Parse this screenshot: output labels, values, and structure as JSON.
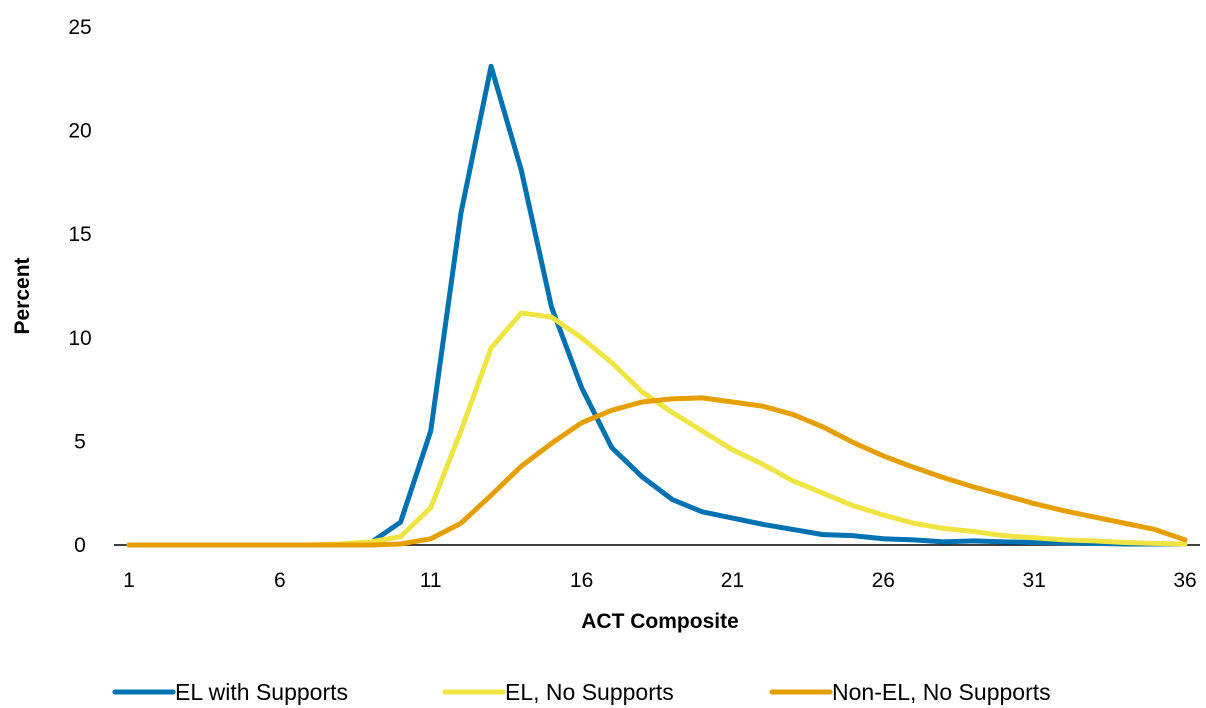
{
  "chart_data": {
    "type": "line",
    "xlabel": "ACT Composite",
    "ylabel": "Percent",
    "xlim": [
      1,
      36
    ],
    "ylim": [
      0,
      25
    ],
    "x_ticks": [
      1,
      6,
      11,
      16,
      21,
      26,
      31,
      36
    ],
    "y_ticks": [
      0,
      5,
      10,
      15,
      20,
      25
    ],
    "grid": false,
    "legend_position": "bottom",
    "x": [
      1,
      2,
      3,
      4,
      5,
      6,
      7,
      8,
      9,
      10,
      11,
      12,
      13,
      14,
      15,
      16,
      17,
      18,
      19,
      20,
      21,
      22,
      23,
      24,
      25,
      26,
      27,
      28,
      29,
      30,
      31,
      32,
      33,
      34,
      35,
      36
    ],
    "series": [
      {
        "name": "EL with Supports",
        "color": "#0072B2",
        "values": [
          0,
          0,
          0,
          0,
          0,
          0,
          0,
          0,
          0.1,
          1.1,
          5.5,
          16.0,
          23.1,
          18.1,
          11.5,
          7.6,
          4.7,
          3.3,
          2.2,
          1.6,
          1.3,
          1.0,
          0.75,
          0.5,
          0.45,
          0.3,
          0.25,
          0.15,
          0.2,
          0.15,
          0.12,
          0.1,
          0.08,
          0.05,
          0.05,
          0.05
        ]
      },
      {
        "name": "EL, No Supports",
        "color": "#F0E442",
        "values": [
          0,
          0,
          0,
          0,
          0,
          0,
          0,
          0.05,
          0.15,
          0.4,
          1.8,
          5.5,
          9.5,
          11.2,
          11.0,
          10.0,
          8.8,
          7.4,
          6.4,
          5.5,
          4.6,
          3.9,
          3.1,
          2.5,
          1.9,
          1.45,
          1.05,
          0.8,
          0.65,
          0.45,
          0.35,
          0.25,
          0.2,
          0.12,
          0.08,
          0.05
        ]
      },
      {
        "name": "Non-EL, No Supports",
        "color": "#E69F00",
        "values": [
          0,
          0,
          0,
          0,
          0,
          0,
          0,
          0,
          0,
          0.05,
          0.3,
          1.05,
          2.4,
          3.8,
          4.9,
          5.9,
          6.5,
          6.9,
          7.05,
          7.1,
          6.9,
          6.7,
          6.3,
          5.7,
          4.95,
          4.3,
          3.75,
          3.25,
          2.8,
          2.4,
          2.0,
          1.65,
          1.35,
          1.05,
          0.75,
          0.25
        ]
      }
    ]
  }
}
